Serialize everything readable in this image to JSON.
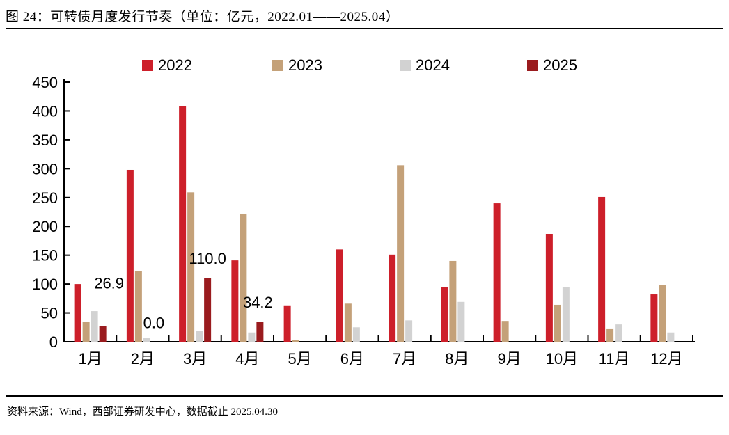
{
  "page": {
    "title": "图 24：可转债月度发行节奏（单位：亿元，2022.01——2025.04）",
    "source": "资料来源：Wind，西部证券研发中心，数据截止 2025.04.30"
  },
  "chart_data": {
    "type": "bar",
    "title": "可转债月度发行节奏",
    "unit": "亿元",
    "period": "2022.01——2025.04",
    "categories": [
      "1月",
      "2月",
      "3月",
      "4月",
      "5月",
      "6月",
      "7月",
      "8月",
      "9月",
      "10月",
      "11月",
      "12月"
    ],
    "series": [
      {
        "name": "2022",
        "color": "#cd1f2a",
        "values": [
          100,
          298,
          408,
          141,
          63,
          160,
          151,
          95,
          240,
          187,
          251,
          82
        ]
      },
      {
        "name": "2023",
        "color": "#c4a179",
        "values": [
          35,
          122,
          259,
          222,
          3,
          66,
          306,
          140,
          36,
          64,
          23,
          98
        ]
      },
      {
        "name": "2024",
        "color": "#d2d2d2",
        "values": [
          53,
          6,
          19,
          16,
          0,
          25,
          37,
          69,
          0,
          95,
          30,
          16
        ]
      },
      {
        "name": "2025",
        "color": "#9a1b1e",
        "values": [
          26.9,
          0,
          110,
          34.2,
          null,
          null,
          null,
          null,
          null,
          null,
          null,
          null
        ]
      }
    ],
    "annotations": [
      {
        "month_index": 0,
        "series": "2025",
        "text": "26.9",
        "level": 102,
        "dx": 9
      },
      {
        "month_index": 1,
        "series": "2025",
        "text": "0.0",
        "level": 33,
        "dx": -2
      },
      {
        "month_index": 2,
        "series": "2025",
        "text": "110.0",
        "level": 145,
        "dx": 0
      },
      {
        "month_index": 3,
        "series": "2025",
        "text": "34.2",
        "level": 69,
        "dx": -3
      }
    ],
    "xlabel": "",
    "ylabel": "",
    "ylim": [
      0,
      450
    ],
    "ytick_step": 50,
    "grid": false,
    "legend_position": "top",
    "axis_color": "#000000",
    "text_color": "#000000"
  }
}
